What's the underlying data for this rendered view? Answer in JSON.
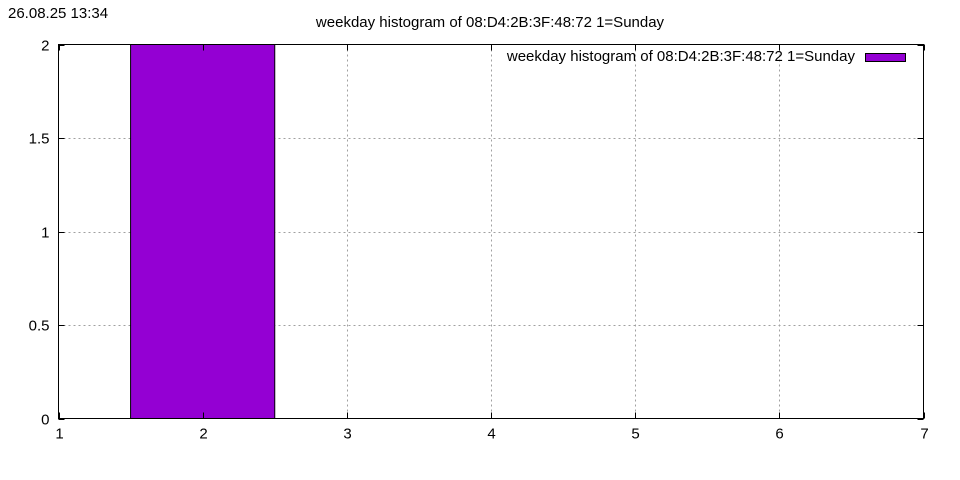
{
  "timestamp": "26.08.25 13:34",
  "chart_data": {
    "type": "bar",
    "title": "weekday histogram of 08:D4:2B:3F:48:72 1=Sunday",
    "xlabel": "",
    "ylabel": "",
    "x": [
      2
    ],
    "values": [
      2
    ],
    "bar_width": 1,
    "xlim": [
      1,
      7
    ],
    "ylim": [
      0,
      2
    ],
    "xticks": [
      1,
      2,
      3,
      4,
      5,
      6,
      7
    ],
    "yticks": [
      0,
      0.5,
      1,
      1.5,
      2
    ],
    "ytick_labels": [
      "0",
      "0.5",
      "1",
      "1.5",
      "2"
    ],
    "grid": true,
    "legend": {
      "label": "weekday histogram of 08:D4:2B:3F:48:72 1=Sunday",
      "placement": "top-right"
    },
    "colors": {
      "bar": "#9400d3",
      "grid": "#a0a0a0",
      "axis": "#000000"
    }
  }
}
